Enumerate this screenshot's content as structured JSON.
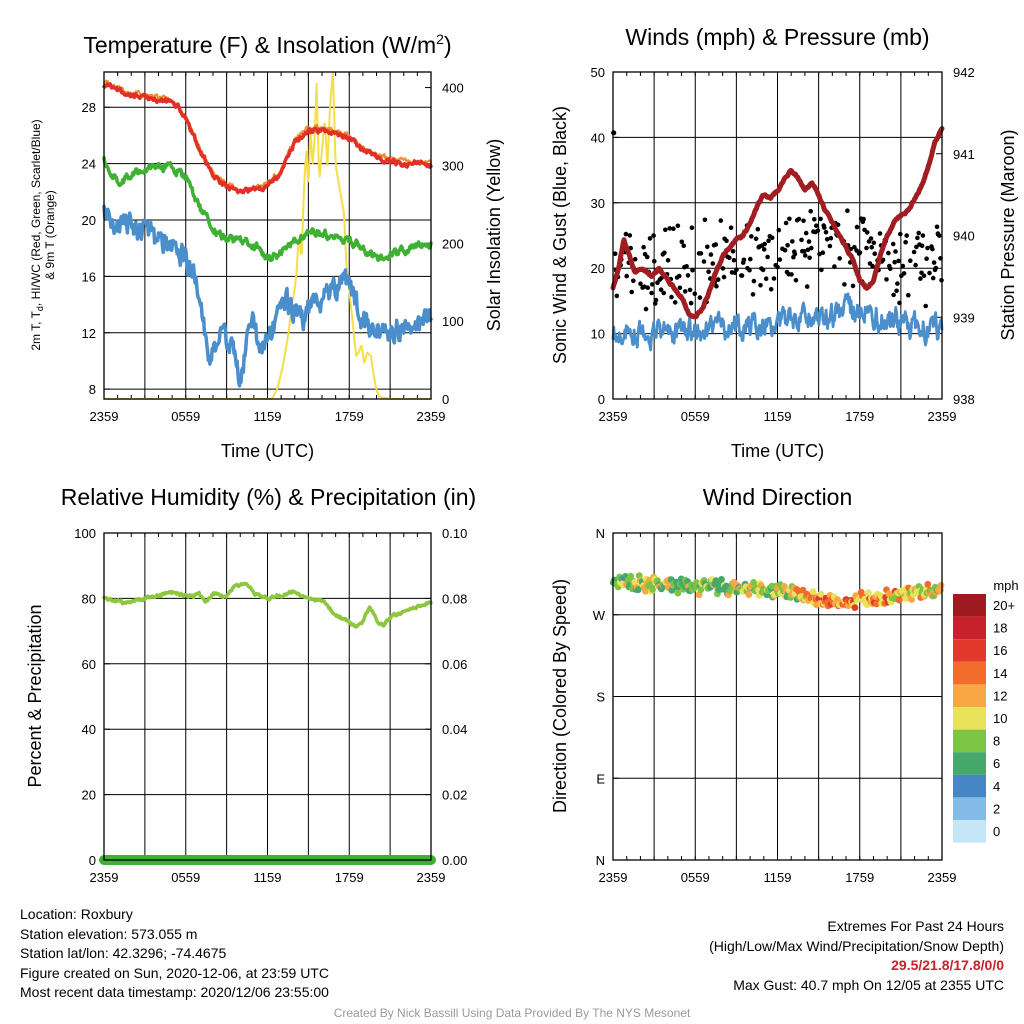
{
  "chart_data": [
    {
      "id": "temperature",
      "type": "line",
      "title": "Temperature (F) & Insolation (W/m",
      "title_sup": "2",
      "title_end": ")",
      "xlabel": "Time (UTC)",
      "ylabel_lines": [
        "2m T, T",
        "d",
        ", HI/WC (Red, Green, Scarlet/Blue)",
        "& 9m T (Orange)"
      ],
      "ylabel_right": "Solar Insolation (Yellow)",
      "x_ticks": [
        "2359",
        "0559",
        "1159",
        "1759",
        "2359"
      ],
      "xlim": [
        0,
        24
      ],
      "ylim": [
        7.3,
        30.5
      ],
      "y_ticks": [
        8,
        12,
        16,
        20,
        24,
        28
      ],
      "y2lim": [
        0,
        420
      ],
      "y2_ticks": [
        0,
        100,
        200,
        300,
        400
      ],
      "grid": true,
      "series": [
        {
          "role": "2m T",
          "color": "#e03027",
          "axis": "left",
          "noise": 0.15,
          "width": 3.5,
          "x": [
            0,
            0.5,
            1,
            2,
            3,
            4,
            5,
            5.5,
            6,
            7,
            8,
            9,
            10,
            11,
            12,
            13,
            13.5,
            14,
            15,
            16,
            17,
            18,
            19,
            20,
            21,
            22,
            23,
            24
          ],
          "values": [
            29.6,
            29.5,
            29.2,
            28.9,
            28.7,
            28.5,
            28.3,
            28.0,
            27.2,
            25.0,
            23.2,
            22.3,
            22.0,
            22.1,
            22.4,
            23.3,
            24.5,
            25.5,
            26.3,
            26.4,
            26.1,
            25.8,
            25.0,
            24.5,
            24.1,
            24.0,
            24.0,
            23.9
          ]
        },
        {
          "role": "9m T",
          "color": "#f08a2b",
          "axis": "left",
          "noise": 0.15,
          "width": 2,
          "x": [
            0,
            1,
            2,
            3,
            4,
            5,
            6,
            7,
            8,
            9,
            10,
            11,
            12,
            13,
            14,
            15,
            16,
            17,
            18,
            19,
            20,
            21,
            22,
            23,
            24
          ],
          "values": [
            29.8,
            29.4,
            29.1,
            28.9,
            28.7,
            28.5,
            27.4,
            25.2,
            23.4,
            22.5,
            22.2,
            22.3,
            22.6,
            23.6,
            25.8,
            26.5,
            26.6,
            26.3,
            26.0,
            25.2,
            24.7,
            24.3,
            24.2,
            24.1,
            24.0
          ]
        },
        {
          "role": "2m Td",
          "color": "#3eb134",
          "axis": "left",
          "noise": 0.25,
          "width": 3.5,
          "x": [
            0,
            0.5,
            1,
            1.5,
            2,
            3,
            4,
            5,
            6,
            7,
            8,
            9,
            10,
            11,
            12,
            13,
            14,
            15,
            16,
            17,
            18,
            19,
            20,
            21,
            22,
            23,
            24
          ],
          "values": [
            24.2,
            23.2,
            22.8,
            22.9,
            23.2,
            23.6,
            23.9,
            23.7,
            23.0,
            21.0,
            19.3,
            18.6,
            18.5,
            18.2,
            17.3,
            17.6,
            18.5,
            19.2,
            19.0,
            18.8,
            18.6,
            18.0,
            17.2,
            17.5,
            17.8,
            18.2,
            18.5
          ]
        },
        {
          "role": "HI/WC",
          "color": "#4a8ecb",
          "axis": "left",
          "noise": 0.7,
          "width": 3.5,
          "x": [
            0,
            1,
            2,
            3,
            4,
            5,
            6,
            6.5,
            7,
            7.5,
            8,
            8.5,
            9,
            9.5,
            10,
            10.5,
            11,
            11.5,
            12,
            12.5,
            13,
            13.5,
            14,
            14.5,
            15,
            16,
            17,
            18,
            18.5,
            19,
            20,
            21,
            22,
            23,
            24
          ],
          "values": [
            20.4,
            19.8,
            19.5,
            19.0,
            18.4,
            18.2,
            17.5,
            16.5,
            14.0,
            11.0,
            10.5,
            11.5,
            11.5,
            10.2,
            9.0,
            11.0,
            12.5,
            10.5,
            11.5,
            12.5,
            13.5,
            14.0,
            13.5,
            12.8,
            13.6,
            14.5,
            15.0,
            15.5,
            14.0,
            12.5,
            12.8,
            12.0,
            12.5,
            12.5,
            13.0
          ]
        },
        {
          "role": "Solar Insolation",
          "color": "#f5de4a",
          "axis": "right",
          "noise": 0,
          "width": 2,
          "x": [
            0,
            12.3,
            12.7,
            13.1,
            13.5,
            13.8,
            14.1,
            14.3,
            14.5,
            14.7,
            14.85,
            15.0,
            15.15,
            15.3,
            15.45,
            15.6,
            15.8,
            16.0,
            16.2,
            16.4,
            16.6,
            16.8,
            17.0,
            17.3,
            17.6,
            17.8,
            18.0,
            18.3,
            18.5,
            18.7,
            18.9,
            19.1,
            19.3,
            19.6,
            19.8,
            20.0,
            20.2,
            21.0,
            24
          ],
          "values": [
            0,
            0,
            12,
            40,
            80,
            120,
            155,
            210,
            180,
            280,
            320,
            270,
            350,
            300,
            330,
            405,
            280,
            320,
            360,
            300,
            380,
            420,
            300,
            270,
            240,
            170,
            140,
            90,
            55,
            60,
            70,
            45,
            60,
            55,
            30,
            12,
            3,
            0,
            0
          ]
        }
      ]
    },
    {
      "id": "winds",
      "type": "line",
      "title": "Winds (mph) & Pressure (mb)",
      "xlabel": "Time (UTC)",
      "ylabel": "Sonic Wind & Gust (Blue, Black)",
      "ylabel_right": "Station Pressure (Maroon)",
      "x_ticks": [
        "2359",
        "0559",
        "1159",
        "1759",
        "2359"
      ],
      "xlim": [
        0,
        24
      ],
      "ylim": [
        0,
        50
      ],
      "y_ticks": [
        0,
        10,
        20,
        30,
        40,
        50
      ],
      "y2lim": [
        938,
        942
      ],
      "y2_ticks": [
        938,
        939,
        940,
        941,
        942
      ],
      "grid": true,
      "series": [
        {
          "role": "Sonic Wind",
          "color": "#4a8ecb",
          "axis": "left",
          "noise": 1.6,
          "width": 2.8,
          "x": [
            0,
            2,
            4,
            6,
            8,
            10,
            12,
            14,
            16,
            18,
            20,
            22,
            24
          ],
          "values": [
            10.5,
            10.0,
            10.0,
            10.5,
            11.0,
            11.5,
            11.5,
            12.5,
            13.0,
            14.0,
            12.0,
            11.0,
            10.5
          ]
        },
        {
          "role": "Gust",
          "color": "#000000",
          "axis": "left",
          "kind": "scatter",
          "spread": 5.5,
          "n": 360,
          "x": [
            0,
            2,
            4,
            6,
            8,
            10,
            12,
            14,
            16,
            18,
            20,
            22,
            24
          ],
          "values": [
            20.5,
            20.0,
            20.0,
            20.5,
            21.5,
            22.0,
            22.5,
            23.0,
            23.5,
            24.0,
            22.5,
            21.0,
            20.5
          ],
          "extra": [
            [
              0.05,
              40.7
            ]
          ]
        },
        {
          "role": "Station Pressure",
          "color": "#a01d21",
          "axis": "right",
          "noise": 0.012,
          "width": 5,
          "x": [
            0,
            0.4,
            0.8,
            1.2,
            1.6,
            2.2,
            2.8,
            3.4,
            4.0,
            4.5,
            5.0,
            5.5,
            6.0,
            6.5,
            7.0,
            7.5,
            8.0,
            8.5,
            9.0,
            9.5,
            10.0,
            10.5,
            11.0,
            11.5,
            12.0,
            12.5,
            13.0,
            13.5,
            14.0,
            14.5,
            15.0,
            15.5,
            16.0,
            16.5,
            17.0,
            17.5,
            18.0,
            18.5,
            19.0,
            19.5,
            20.0,
            20.5,
            21.0,
            21.5,
            22.0,
            22.5,
            23.0,
            23.5,
            24
          ],
          "values": [
            939.35,
            939.6,
            939.95,
            939.75,
            939.55,
            939.6,
            939.5,
            939.6,
            939.45,
            939.35,
            939.25,
            939.05,
            939.0,
            939.1,
            939.3,
            939.55,
            939.75,
            939.85,
            939.95,
            940.0,
            940.15,
            940.35,
            940.5,
            940.45,
            940.55,
            940.7,
            940.8,
            940.7,
            940.55,
            940.65,
            940.5,
            940.3,
            940.15,
            940.0,
            939.85,
            939.7,
            939.45,
            939.35,
            939.45,
            939.75,
            940.0,
            940.15,
            940.25,
            940.3,
            940.45,
            940.6,
            940.85,
            941.15,
            941.3
          ]
        }
      ]
    },
    {
      "id": "humidity",
      "type": "line",
      "title": "Relative Humidity (%) & Precipitation (in)",
      "ylabel": "Percent & Precipitation",
      "x_ticks": [
        "2359",
        "0559",
        "1159",
        "1759",
        "2359"
      ],
      "xlim": [
        0,
        24
      ],
      "ylim": [
        0,
        100
      ],
      "y_ticks": [
        0,
        20,
        40,
        60,
        80,
        100
      ],
      "y2lim": [
        0,
        0.1
      ],
      "y2_ticks": [
        "0.00",
        "0.02",
        "0.04",
        "0.06",
        "0.08",
        "0.10"
      ],
      "grid": true,
      "series": [
        {
          "role": "Relative Humidity",
          "color": "#8dc63f",
          "axis": "left",
          "noise": 0.4,
          "width": 3.5,
          "x": [
            0,
            0.5,
            1,
            1.5,
            2,
            3,
            4,
            5,
            6,
            6.5,
            7,
            7.5,
            8,
            9,
            9.5,
            10,
            10.5,
            11,
            12,
            13,
            14,
            15,
            16,
            17,
            17.5,
            18,
            18.5,
            19,
            19.5,
            20,
            20.5,
            21,
            22,
            23,
            24
          ],
          "values": [
            80.5,
            79.5,
            79.0,
            78.5,
            79.0,
            80.0,
            81.0,
            82.0,
            81.0,
            80.5,
            81.5,
            79.0,
            81.5,
            80.5,
            83.5,
            84.0,
            84.5,
            81.5,
            80.0,
            81.0,
            82.0,
            80.0,
            79.5,
            75.0,
            74.0,
            72.5,
            71.5,
            73.0,
            77.5,
            73.5,
            71.5,
            74.0,
            76.0,
            77.5,
            79.0
          ]
        },
        {
          "role": "Precipitation",
          "color": "#3eb134",
          "axis": "right",
          "noise": 0,
          "width": 10,
          "x": [
            0,
            24
          ],
          "values": [
            0,
            0
          ]
        }
      ]
    },
    {
      "id": "direction",
      "type": "scatter",
      "title": "Wind Direction",
      "ylabel": "Direction (Colored By Speed)",
      "x_ticks": [
        "2359",
        "0559",
        "1159",
        "1759",
        "2359"
      ],
      "xlim": [
        0,
        24
      ],
      "ylim": [
        0,
        360
      ],
      "y_tick_labels": [
        "N",
        "E",
        "S",
        "W",
        "N"
      ],
      "y_tick_values": [
        0,
        90,
        180,
        270,
        360
      ],
      "grid": true,
      "points": {
        "n": 320,
        "spread": 5.5,
        "x": [
          0,
          4,
          8,
          12,
          16,
          20,
          24
        ],
        "direction": [
          306,
          303,
          300,
          297,
          284,
          290,
          297
        ],
        "speed": [
          9,
          10,
          9,
          10,
          14,
          13,
          11
        ]
      },
      "colorbar": {
        "units": "mph",
        "labels": [
          "20+",
          "18",
          "16",
          "14",
          "12",
          "10",
          "8",
          "6",
          "4",
          "2",
          "0"
        ],
        "colors": [
          "#9e1b21",
          "#c8202c",
          "#e13a2c",
          "#f26c2c",
          "#f9a645",
          "#e9e35a",
          "#7cc444",
          "#46a86b",
          "#4487c4",
          "#82bce6",
          "#c4e6f6"
        ]
      }
    }
  ],
  "footer_left": [
    "Location: Roxbury",
    "Station elevation: 573.055 m",
    "Station lat/lon: 42.3296; -74.4675",
    "Figure created on Sun, 2020-12-06, at 23:59 UTC",
    "Most recent data timestamp: 2020/12/06 23:55:00"
  ],
  "footer_right": {
    "title": "Extremes For Past 24 Hours",
    "subtitle": "(High/Low/Max Wind/Precipitation/Snow Depth)",
    "values": "29.5/21.8/17.8/0/0",
    "gust": "Max Gust: 40.7 mph On 12/05 at 2355 UTC"
  },
  "credit": "Created By Nick Bassill Using Data Provided By The NYS Mesonet"
}
